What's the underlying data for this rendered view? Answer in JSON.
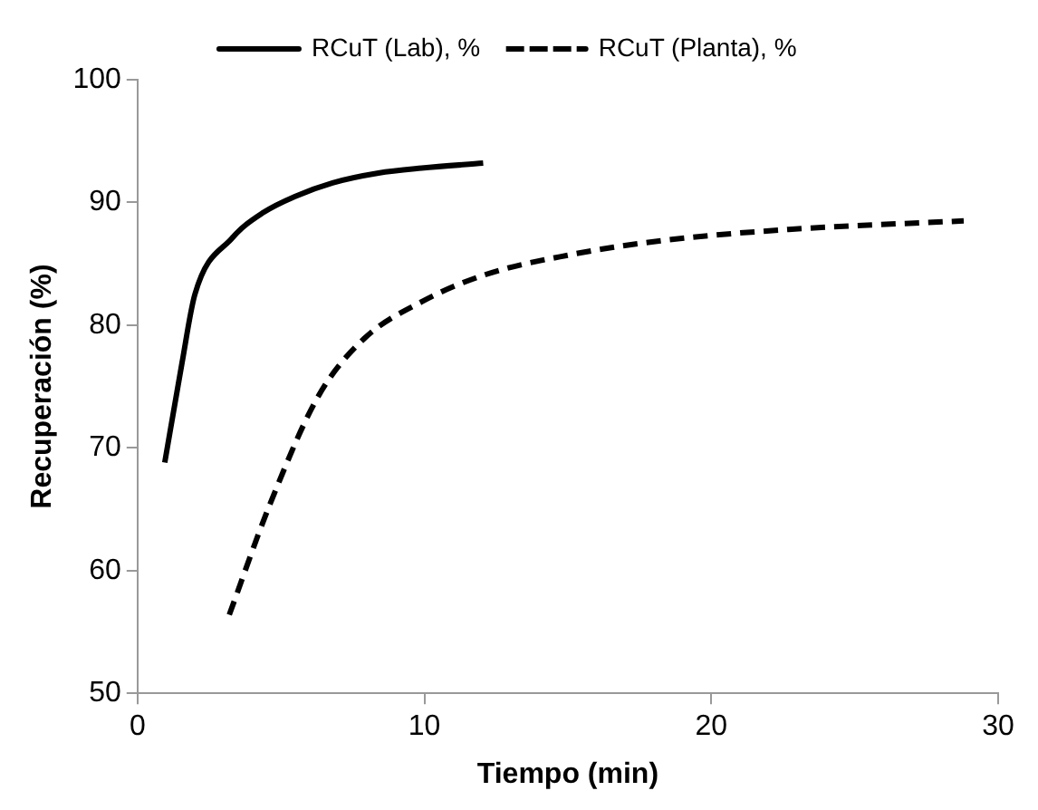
{
  "chart_data": {
    "type": "line",
    "xlabel": "Tiempo (min)",
    "ylabel": "Recuperación (%)",
    "xlim": [
      0,
      30
    ],
    "xticks": [
      0,
      10,
      20,
      30
    ],
    "ylim": [
      50,
      100
    ],
    "yticks": [
      50,
      60,
      70,
      80,
      90,
      100
    ],
    "grid": false,
    "legend": "top",
    "marker": "none",
    "series": [
      {
        "name": "RCuT (Lab), %",
        "color": "#000000",
        "line_style": "solid",
        "x": [
          0.95,
          1.55,
          2.0,
          3.3,
          4.4,
          5.5,
          6.8,
          8.4,
          9.9,
          12.05
        ],
        "values": [
          68.8,
          76.9,
          82.5,
          87.1,
          89.2,
          90.5,
          91.6,
          92.4,
          92.8,
          93.2
        ]
      },
      {
        "name": "RCuT (Planta), %",
        "color": "#000000",
        "line_style": "dashed",
        "x": [
          3.2,
          4.6,
          6.3,
          7.9,
          9.9,
          12.1,
          15.0,
          18.3,
          22.7,
          28.8
        ],
        "values": [
          56.4,
          65.3,
          74.2,
          78.9,
          81.9,
          84.1,
          85.7,
          86.9,
          87.8,
          88.5
        ]
      }
    ]
  }
}
